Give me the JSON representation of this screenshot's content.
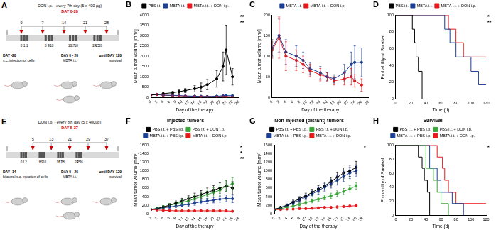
{
  "diagrams": [
    {
      "panel": "A",
      "top_text": "DON i.p. - every 7th day (5 x 400 µg)",
      "top_subtext": "DAY 0-28",
      "top_days": [
        0,
        7,
        14,
        21,
        28
      ],
      "bottom_days": [
        0,
        1,
        2,
        8,
        9,
        10,
        16,
        17,
        18,
        24,
        25,
        26
      ],
      "left_text": [
        "DAY -20",
        "s.c. injection of cells"
      ],
      "middle_text": [
        "DAY 0 - 26",
        "MBTA i.t."
      ],
      "right_text": [
        "until DAY 120",
        "survival"
      ]
    },
    {
      "panel": "E",
      "top_text": "DON i.p. - every 8th day (5 x 400µg)",
      "top_subtext": "DAY 5-37",
      "top_days": [
        5,
        13,
        21,
        29,
        37
      ],
      "bottom_days": [
        0,
        1,
        2,
        8,
        9,
        10,
        16,
        17,
        18,
        24,
        25,
        26
      ],
      "left_text": [
        "DAY -14",
        "bilateral s.c. injection of cells"
      ],
      "middle_text": [
        "DAY 0 - 26",
        "MBTA i.t."
      ],
      "right_text": [
        "until DAY 120",
        "survival"
      ]
    }
  ],
  "chart_data": [
    {
      "panel": "B",
      "type": "line",
      "x_label": "Day of the therapy",
      "y_label": "Mean tumor volume [mm³]",
      "x": [
        0,
        2,
        4,
        7,
        9,
        11,
        14,
        16,
        18,
        21,
        23,
        24,
        26
      ],
      "xlim": [
        0,
        28
      ],
      "xticks": [
        0,
        2,
        4,
        6,
        8,
        10,
        12,
        14,
        16,
        18,
        20,
        22,
        24,
        26,
        28
      ],
      "ylim": [
        0,
        4000
      ],
      "yticks": [
        0,
        500,
        1000,
        1500,
        2000,
        2500,
        3000,
        3500,
        4000
      ],
      "grid": false,
      "legend": "top",
      "marker": "circle",
      "line_style": "solid",
      "annotations": [
        "**",
        "**"
      ],
      "series": [
        {
          "name": "PBS i.t.",
          "color": "#000000",
          "values": [
            110,
            140,
            180,
            230,
            280,
            330,
            420,
            500,
            620,
            900,
            1500,
            2300,
            1000
          ],
          "errors": [
            20,
            30,
            40,
            60,
            80,
            100,
            150,
            200,
            250,
            400,
            700,
            1200,
            400
          ]
        },
        {
          "name": "MBTA i.t.",
          "color": "#1c3f94",
          "values": [
            120,
            150,
            110,
            100,
            90,
            70,
            60,
            50,
            45,
            60,
            80,
            85,
            85
          ],
          "errors": [
            20,
            40,
            30,
            25,
            20,
            15,
            15,
            10,
            10,
            20,
            30,
            40,
            35
          ]
        },
        {
          "name": "MBTA i.t. + DON i.p.",
          "color": "#e41a1c",
          "values": [
            115,
            145,
            100,
            90,
            80,
            65,
            55,
            50,
            40,
            45,
            50,
            40,
            30
          ],
          "errors": [
            20,
            50,
            35,
            25,
            20,
            15,
            15,
            10,
            10,
            15,
            20,
            15,
            15
          ]
        }
      ]
    },
    {
      "panel": "C",
      "type": "line",
      "x_label": "Day of the therapy",
      "y_label": "Mean tumor volume [mm³]",
      "x": [
        0,
        2,
        4,
        7,
        9,
        11,
        14,
        16,
        18,
        21,
        23,
        24,
        26
      ],
      "xlim": [
        0,
        28
      ],
      "xticks": [
        0,
        2,
        4,
        6,
        8,
        10,
        12,
        14,
        16,
        18,
        20,
        22,
        24,
        26,
        28
      ],
      "ylim": [
        0,
        200
      ],
      "yticks": [
        0,
        50,
        100,
        150,
        200
      ],
      "grid": false,
      "legend": "top",
      "marker": "circle",
      "line_style": "solid",
      "series": [
        {
          "name": "MBTA i.t.",
          "color": "#1c3f94",
          "values": [
            120,
            150,
            110,
            100,
            90,
            70,
            60,
            50,
            45,
            60,
            80,
            85,
            85
          ],
          "errors": [
            20,
            40,
            30,
            25,
            20,
            15,
            15,
            10,
            10,
            20,
            30,
            40,
            35
          ]
        },
        {
          "name": "MBTA i.t. + DON i.p.",
          "color": "#e41a1c",
          "values": [
            115,
            145,
            100,
            90,
            80,
            65,
            55,
            50,
            40,
            45,
            50,
            40,
            30
          ],
          "errors": [
            20,
            50,
            35,
            25,
            20,
            15,
            15,
            10,
            10,
            15,
            20,
            15,
            15
          ]
        }
      ]
    },
    {
      "panel": "D",
      "type": "line",
      "x_label": "Time (d)",
      "y_label": "Probability of Survival",
      "xlim": [
        0,
        120
      ],
      "xticks": [
        0,
        20,
        40,
        60,
        80,
        100,
        120
      ],
      "ylim": [
        0,
        100
      ],
      "yticks": [
        0,
        20,
        40,
        60,
        80,
        100
      ],
      "grid": false,
      "legend": "top",
      "marker": "none",
      "line_style": "step",
      "annotations": [
        "*",
        "**"
      ],
      "series": [
        {
          "name": "PBS i.t.",
          "color": "#000000",
          "x": [
            0,
            22,
            25,
            27,
            30,
            35
          ],
          "values": [
            100,
            83,
            67,
            50,
            33,
            0
          ]
        },
        {
          "name": "MBTA i.t.",
          "color": "#1c3f94",
          "x": [
            0,
            65,
            72,
            80,
            100,
            110,
            120
          ],
          "values": [
            100,
            83,
            67,
            50,
            33,
            17,
            17
          ]
        },
        {
          "name": "MBTA i.t. + DON i.p.",
          "color": "#e41a1c",
          "x": [
            0,
            70,
            80,
            90,
            120
          ],
          "values": [
            100,
            83,
            67,
            50,
            50
          ]
        }
      ]
    },
    {
      "panel": "F",
      "type": "line",
      "title": "Injected tumors",
      "x_label": "Day of the therapy",
      "y_label": "Mean tumor volume [mm³]",
      "x": [
        0,
        2,
        4,
        6,
        8,
        10,
        12,
        14,
        16,
        18,
        20,
        22,
        24,
        26
      ],
      "xlim": [
        0,
        28
      ],
      "xticks": [
        0,
        2,
        4,
        6,
        8,
        10,
        12,
        14,
        16,
        18,
        20,
        22,
        24,
        26,
        28
      ],
      "ylim": [
        0,
        1600
      ],
      "yticks": [
        0,
        200,
        400,
        600,
        800,
        1000,
        1200,
        1400,
        1600
      ],
      "grid": false,
      "legend": "top",
      "marker": "circle",
      "line_style": "solid",
      "annotations": [
        "*",
        "*",
        "**"
      ],
      "series": [
        {
          "name": "PBS i.t. + PBS i.p.",
          "color": "#000000",
          "values": [
            100,
            120,
            160,
            200,
            250,
            300,
            350,
            400,
            450,
            500,
            550,
            600,
            650,
            600
          ],
          "errors": [
            15,
            20,
            30,
            40,
            50,
            60,
            70,
            80,
            90,
            100,
            110,
            120,
            130,
            150
          ]
        },
        {
          "name": "PBS i.t. + DON i.p.",
          "color": "#3aa63a",
          "values": [
            100,
            130,
            160,
            200,
            230,
            270,
            300,
            350,
            400,
            450,
            500,
            550,
            650,
            700
          ],
          "errors": [
            15,
            20,
            30,
            40,
            50,
            60,
            70,
            80,
            90,
            100,
            110,
            120,
            130,
            140
          ]
        },
        {
          "name": "MBTA i.t. + PBS i.p.",
          "color": "#1c3f94",
          "values": [
            100,
            120,
            140,
            160,
            180,
            200,
            220,
            250,
            280,
            300,
            320,
            340,
            360,
            350
          ],
          "errors": [
            15,
            20,
            25,
            30,
            35,
            40,
            45,
            50,
            55,
            60,
            65,
            70,
            80,
            90
          ]
        },
        {
          "name": "MBTA i.t. + DON i.p.",
          "color": "#e41a1c",
          "values": [
            100,
            90,
            80,
            75,
            70,
            70,
            70,
            70,
            70,
            70,
            70,
            70,
            70,
            60
          ],
          "errors": [
            15,
            15,
            15,
            10,
            10,
            10,
            10,
            10,
            10,
            10,
            10,
            10,
            10,
            10
          ]
        }
      ]
    },
    {
      "panel": "G",
      "type": "line",
      "title": "Non-injected (distant) tumors",
      "x_label": "Day of the therapy",
      "y_label": "Mean tumor volume [mm³]",
      "x": [
        0,
        2,
        4,
        6,
        8,
        10,
        12,
        14,
        16,
        18,
        20,
        22,
        24,
        26
      ],
      "xlim": [
        0,
        28
      ],
      "xticks": [
        0,
        2,
        4,
        6,
        8,
        10,
        12,
        14,
        16,
        18,
        20,
        22,
        24,
        26,
        28
      ],
      "ylim": [
        0,
        1600
      ],
      "yticks": [
        0,
        200,
        400,
        600,
        800,
        1000,
        1200,
        1400,
        1600
      ],
      "grid": false,
      "legend": "top",
      "marker": "circle",
      "line_style": "solid",
      "annotations": [
        "*"
      ],
      "series": [
        {
          "name": "PBS i.t. + PBS i.p.",
          "color": "#000000",
          "values": [
            100,
            150,
            200,
            280,
            350,
            420,
            500,
            580,
            650,
            750,
            850,
            950,
            1000,
            1080
          ],
          "errors": [
            15,
            20,
            30,
            40,
            50,
            60,
            70,
            80,
            90,
            100,
            110,
            120,
            130,
            140
          ]
        },
        {
          "name": "PBS i.t. + DON i.p.",
          "color": "#3aa63a",
          "values": [
            100,
            120,
            150,
            180,
            220,
            260,
            300,
            340,
            380,
            420,
            470,
            520,
            580,
            650
          ],
          "errors": [
            15,
            20,
            25,
            30,
            35,
            40,
            45,
            50,
            55,
            60,
            65,
            70,
            75,
            80
          ]
        },
        {
          "name": "MBTA i.t. + PBS i.p.",
          "color": "#1c3f94",
          "values": [
            100,
            140,
            190,
            250,
            320,
            390,
            460,
            540,
            620,
            700,
            780,
            870,
            950,
            1000
          ],
          "errors": [
            15,
            20,
            30,
            40,
            50,
            60,
            70,
            80,
            90,
            100,
            110,
            120,
            130,
            140
          ]
        },
        {
          "name": "MBTA i.t. + DON i.p.",
          "color": "#e41a1c",
          "values": [
            100,
            100,
            110,
            110,
            120,
            120,
            130,
            140,
            150,
            150,
            160,
            170,
            180,
            190
          ],
          "errors": [
            10,
            10,
            15,
            15,
            15,
            15,
            20,
            20,
            20,
            20,
            25,
            25,
            25,
            30
          ]
        }
      ]
    },
    {
      "panel": "H",
      "type": "line",
      "title": "Survival",
      "x_label": "Time (d)",
      "y_label": "Probability of Survival",
      "xlim": [
        0,
        120
      ],
      "xticks": [
        0,
        20,
        40,
        60,
        80,
        100,
        120
      ],
      "ylim": [
        0,
        100
      ],
      "yticks": [
        0,
        20,
        40,
        60,
        80,
        100
      ],
      "grid": false,
      "legend": "top",
      "marker": "none",
      "line_style": "step",
      "annotations": [
        "*"
      ],
      "series": [
        {
          "name": "PBS i.t. + PBS i.p.",
          "color": "#000000",
          "x": [
            0,
            30,
            35,
            38,
            42,
            45
          ],
          "values": [
            100,
            83,
            67,
            50,
            33,
            0
          ]
        },
        {
          "name": "PBS i.t. + DON i.p.",
          "color": "#3aa63a",
          "x": [
            0,
            40,
            50,
            55,
            60,
            70
          ],
          "values": [
            100,
            67,
            50,
            33,
            17,
            0
          ]
        },
        {
          "name": "MBTA i.t. + PBS i.p.",
          "color": "#1c3f94",
          "x": [
            0,
            45,
            55,
            60,
            75,
            90
          ],
          "values": [
            100,
            67,
            50,
            33,
            17,
            0
          ]
        },
        {
          "name": "MBTA i.t. + DON i.p.",
          "color": "#e41a1c",
          "x": [
            0,
            55,
            62,
            65,
            70,
            80,
            120
          ],
          "values": [
            100,
            83,
            67,
            50,
            33,
            17,
            17
          ]
        }
      ]
    }
  ]
}
